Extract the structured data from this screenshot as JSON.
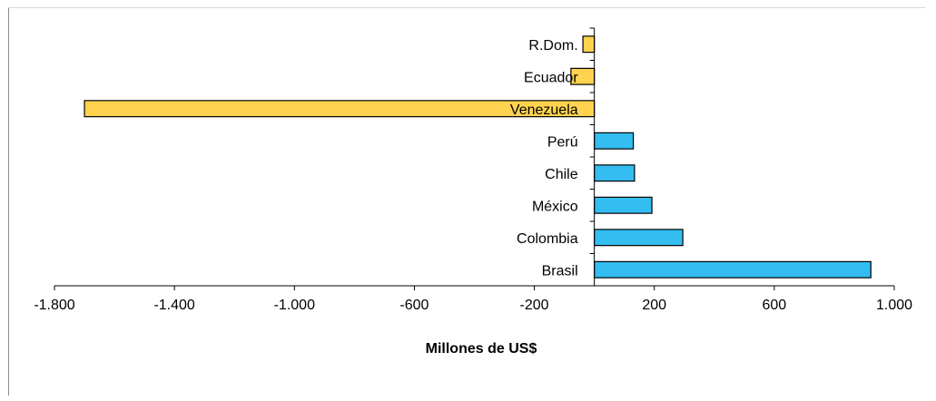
{
  "chart_data": {
    "type": "bar",
    "orientation": "horizontal",
    "categories": [
      "R.Dom.",
      "Ecuador",
      "Venezuela",
      "Perú",
      "Chile",
      "México",
      "Colombia",
      "Brasil"
    ],
    "values": [
      -38,
      -78,
      -1700,
      130,
      134,
      192,
      295,
      922
    ],
    "colors": [
      "#FFD34F",
      "#FFD34F",
      "#FFD34F",
      "#33BDF0",
      "#33BDF0",
      "#33BDF0",
      "#33BDF0",
      "#33BDF0"
    ],
    "xlabel": "Millones de US$",
    "ylabel": "",
    "title": "",
    "xlim": [
      -1800,
      1000
    ],
    "xticks": [
      -1800,
      -1400,
      -1000,
      -600,
      -200,
      200,
      600,
      1000
    ],
    "xtick_labels": [
      "-1.800",
      "-1.400",
      "-1.000",
      "-600",
      "-200",
      "200",
      "600",
      "1.000"
    ],
    "grid": false,
    "legend": "none"
  }
}
